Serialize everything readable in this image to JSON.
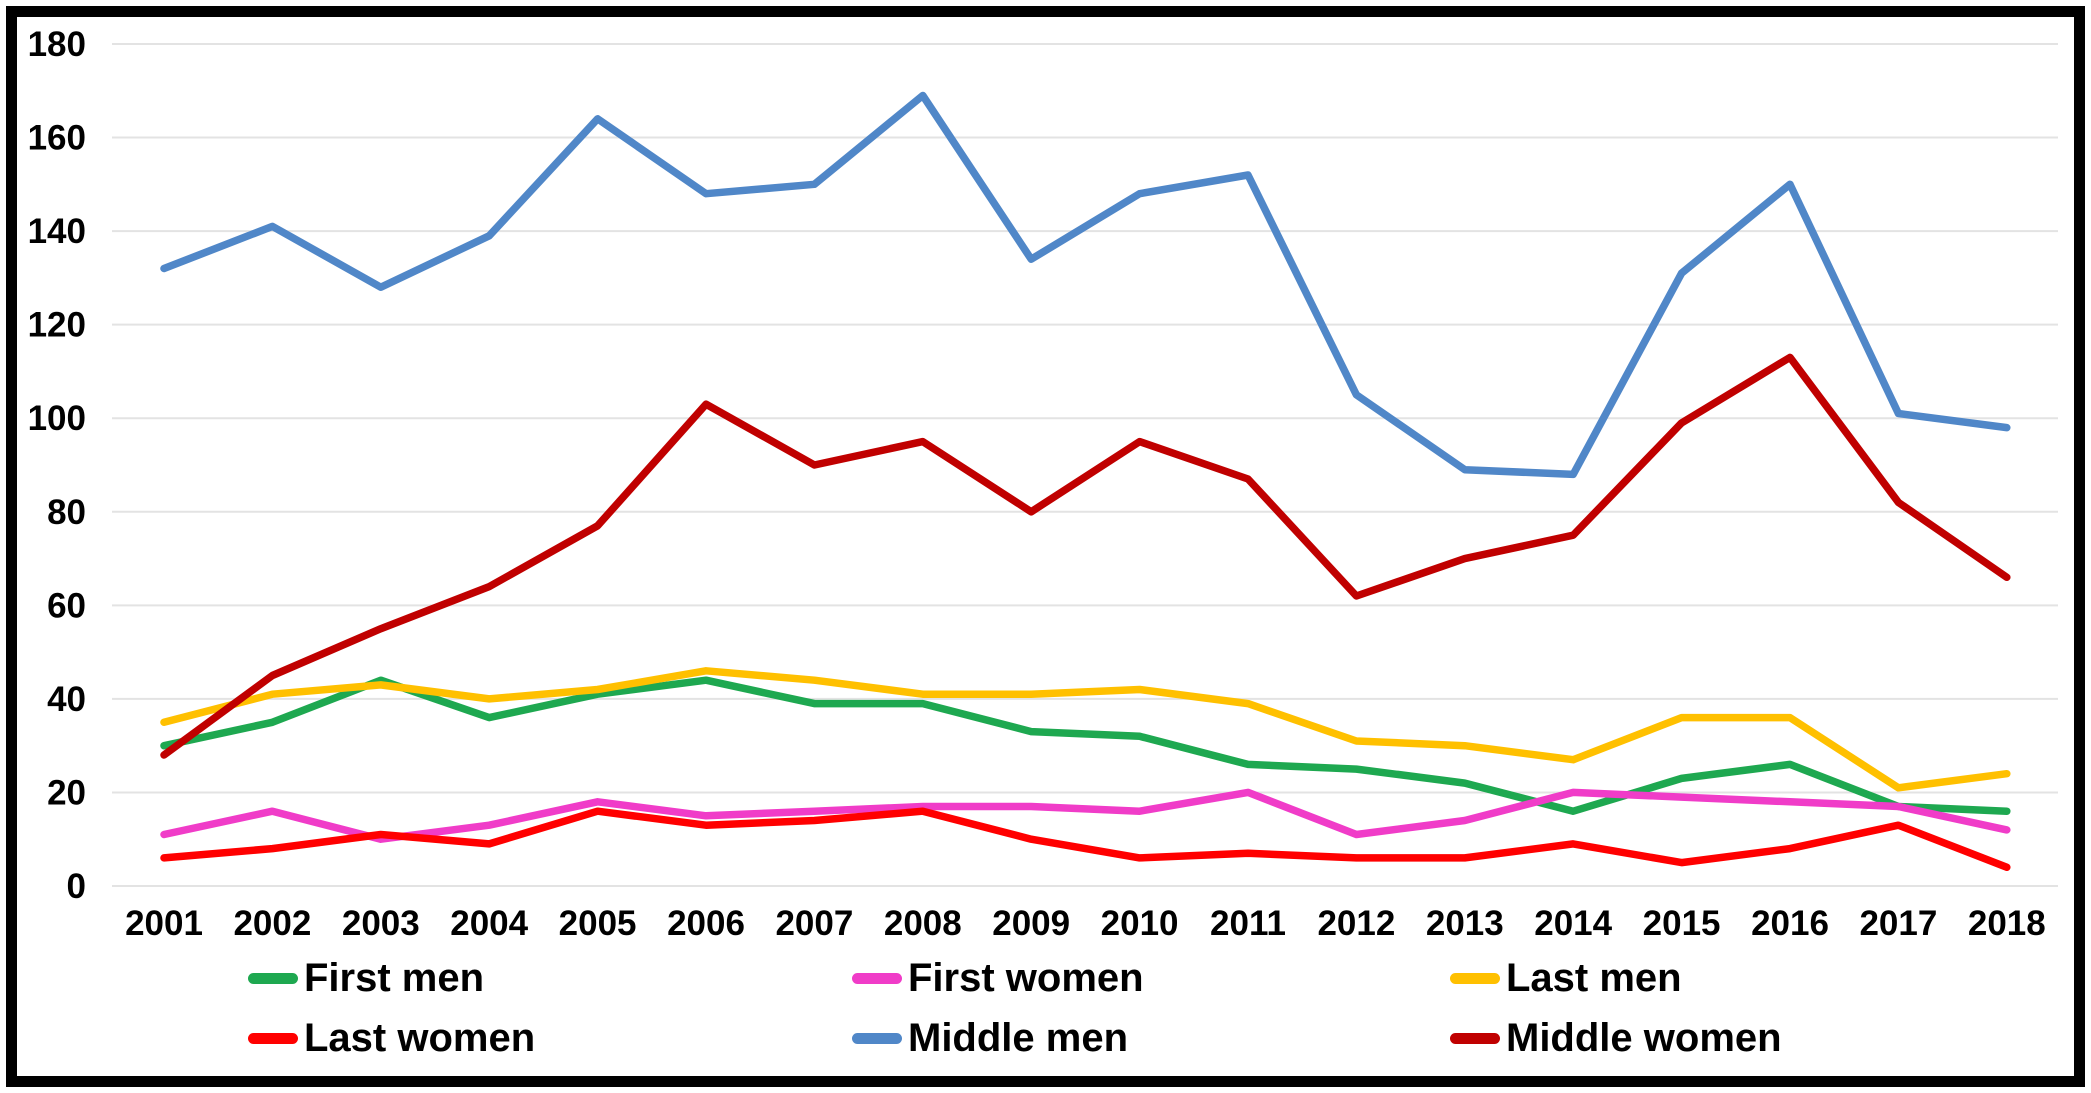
{
  "figure": {
    "background_color": "#FFFFFF",
    "border_color": "#000000",
    "text_color": "#000000",
    "gridline_color": "#E3E3E3"
  },
  "chart_data": {
    "type": "line",
    "title": "",
    "xlabel": "",
    "ylabel": "",
    "categories": [
      "2001",
      "2002",
      "2003",
      "2004",
      "2005",
      "2006",
      "2007",
      "2008",
      "2009",
      "2010",
      "2011",
      "2012",
      "2013",
      "2014",
      "2015",
      "2016",
      "2017",
      "2018"
    ],
    "series": [
      {
        "name": "First men",
        "color": "#1EA850",
        "values": [
          30,
          35,
          44,
          36,
          41,
          44,
          39,
          39,
          33,
          32,
          26,
          25,
          22,
          16,
          23,
          26,
          17,
          16
        ]
      },
      {
        "name": "First women",
        "color": "#F03CC8",
        "values": [
          11,
          16,
          10,
          13,
          18,
          15,
          16,
          17,
          17,
          16,
          20,
          11,
          14,
          20,
          19,
          18,
          17,
          12
        ]
      },
      {
        "name": "Last men",
        "color": "#FFC000",
        "values": [
          35,
          41,
          43,
          40,
          42,
          46,
          44,
          41,
          41,
          42,
          39,
          31,
          30,
          27,
          36,
          36,
          21,
          24
        ]
      },
      {
        "name": "Last women",
        "color": "#FF0000",
        "values": [
          6,
          8,
          11,
          9,
          16,
          13,
          14,
          16,
          10,
          6,
          7,
          6,
          6,
          9,
          5,
          8,
          13,
          4
        ]
      },
      {
        "name": "Middle men",
        "color": "#5087C8",
        "values": [
          132,
          141,
          128,
          139,
          164,
          148,
          150,
          169,
          134,
          148,
          152,
          105,
          89,
          88,
          131,
          150,
          101,
          98
        ]
      },
      {
        "name": "Middle women",
        "color": "#C00000",
        "values": [
          28,
          45,
          55,
          64,
          77,
          103,
          90,
          95,
          80,
          95,
          87,
          62,
          70,
          75,
          99,
          113,
          82,
          66
        ]
      }
    ],
    "ylim": [
      0,
      180
    ],
    "yticks": [
      0,
      20,
      40,
      60,
      80,
      100,
      120,
      140,
      160,
      180
    ],
    "grid": "horizontal",
    "legend_position": "bottom"
  }
}
